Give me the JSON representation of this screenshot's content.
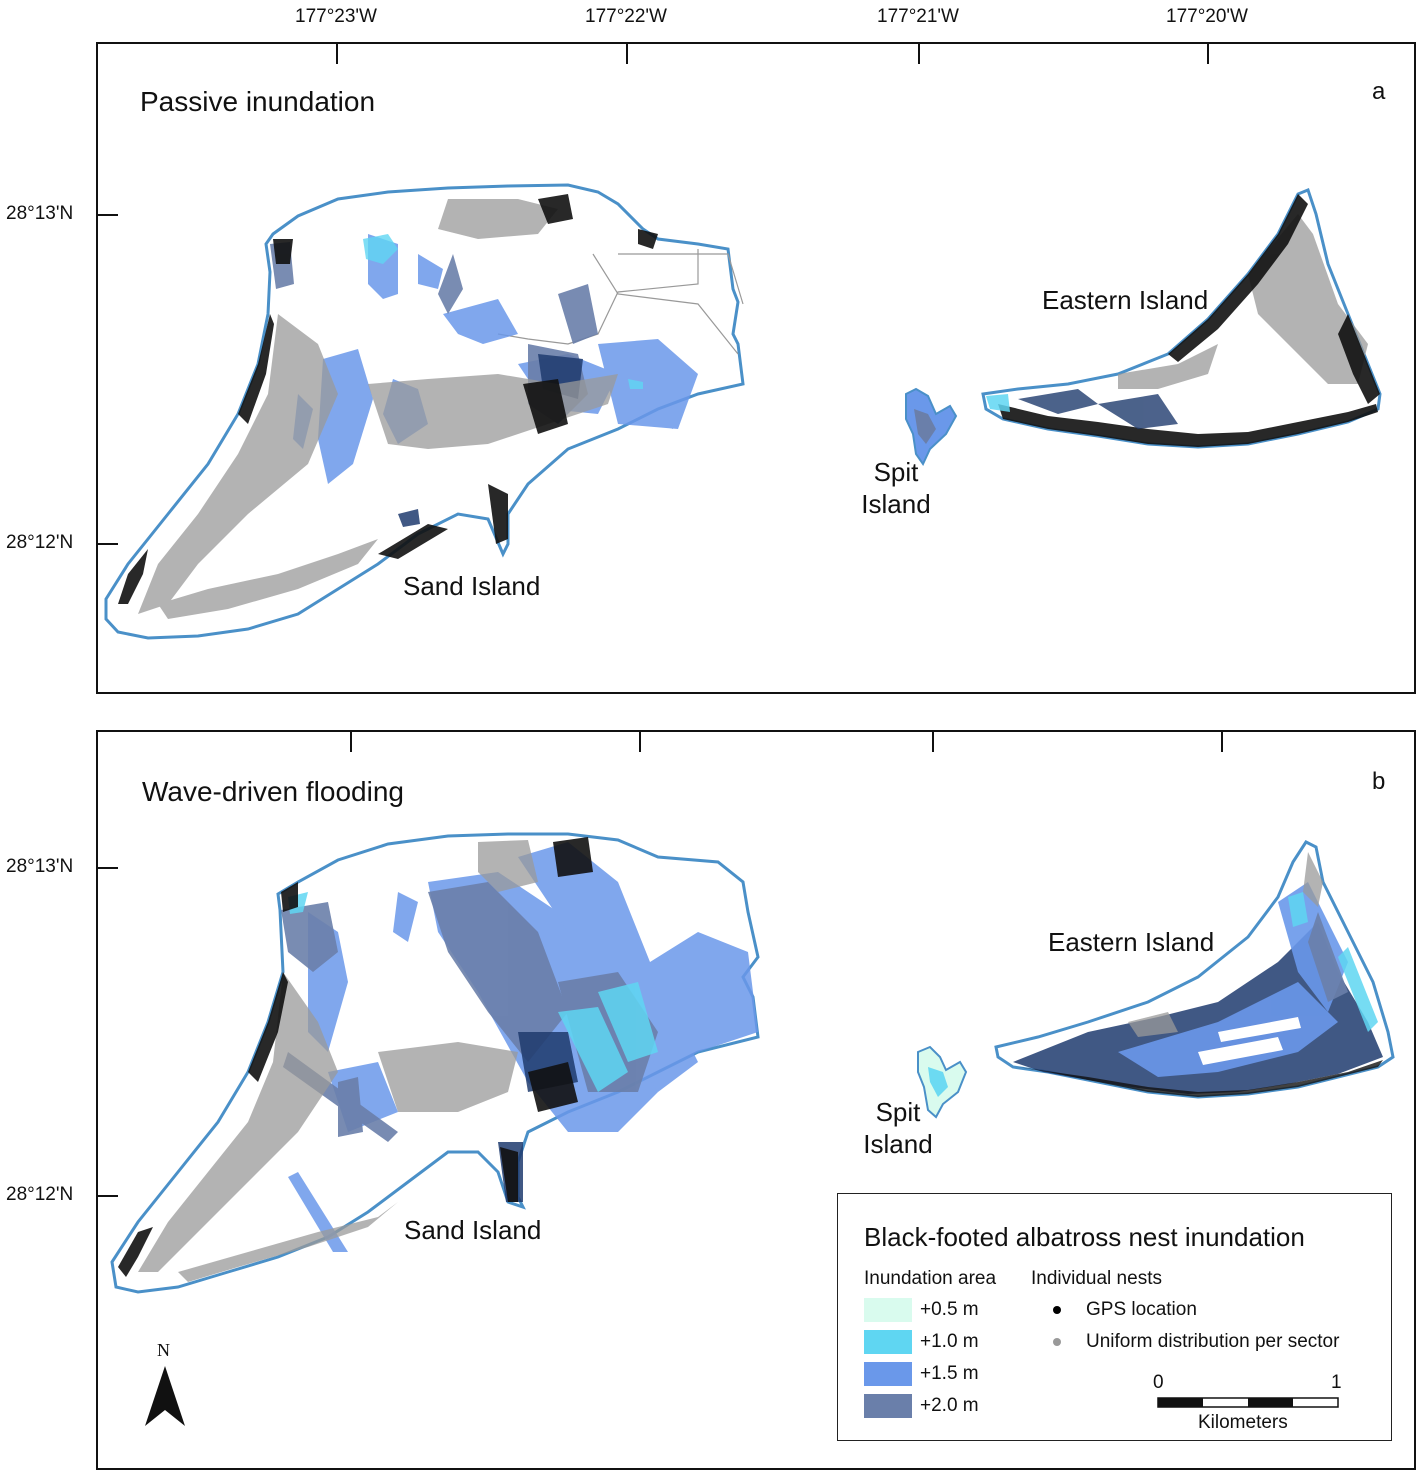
{
  "axes": {
    "longitude_labels": [
      "177°23'W",
      "177°22'W",
      "177°21'W",
      "177°20'W"
    ],
    "latitude_labels_top": [
      "28°13'N",
      "28°12'N"
    ],
    "latitude_labels_bottom": [
      "28°13'N",
      "28°12'N"
    ]
  },
  "panels": [
    {
      "title": "Passive inundation",
      "letter": "a",
      "islands": {
        "sand": "Sand Island",
        "eastern": "Eastern Island",
        "spit_line1": "Spit",
        "spit_line2": "Island"
      }
    },
    {
      "title": "Wave-driven flooding",
      "letter": "b",
      "islands": {
        "sand": "Sand Island",
        "eastern": "Eastern Island",
        "spit_line1": "Spit",
        "spit_line2": "Island"
      }
    }
  ],
  "legend": {
    "title": "Black-footed albatross nest inundation",
    "inundation_heading": "Inundation area",
    "nests_heading": "Individual nests",
    "inundation_levels": [
      {
        "label": "+0.5 m",
        "color": "#d9fbee"
      },
      {
        "label": "+1.0 m",
        "color": "#5fd6f2"
      },
      {
        "label": "+1.5 m",
        "color": "#6a98ea"
      },
      {
        "label": "+2.0 m",
        "color": "#6a7faa"
      }
    ],
    "nests": [
      {
        "label": "GPS location",
        "color": "#000000"
      },
      {
        "label": "Uniform distribution per sector",
        "color": "#999999"
      }
    ],
    "scale": {
      "min_label": "0",
      "max_label": "1",
      "units": "Kilometers"
    }
  },
  "north_arrow": {
    "label": "N",
    "icon": "north-arrow-icon"
  }
}
